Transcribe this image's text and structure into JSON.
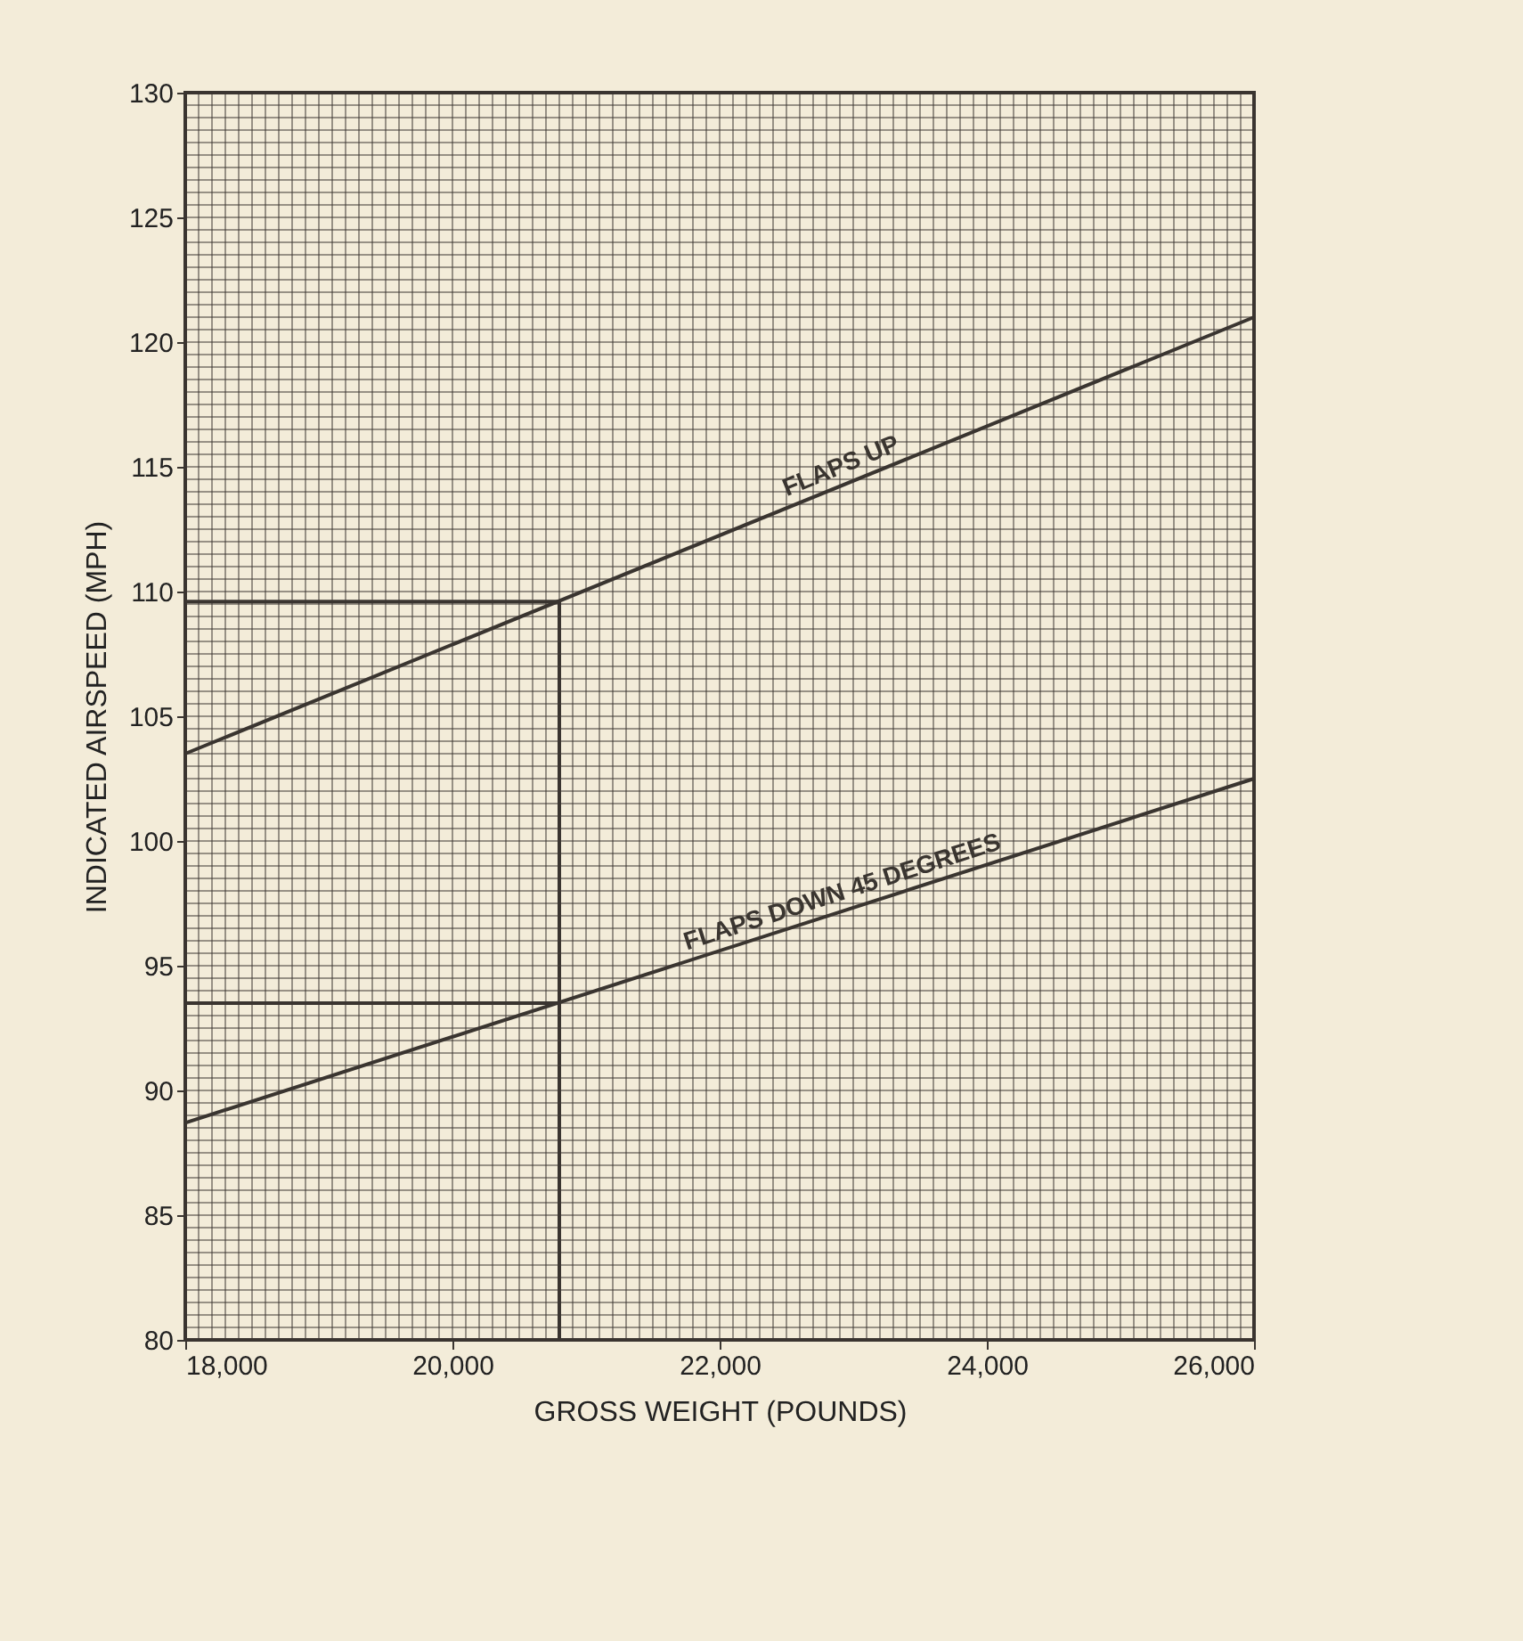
{
  "chart_data": {
    "type": "line",
    "xlabel": "GROSS WEIGHT (POUNDS)",
    "ylabel": "INDICATED AIRSPEED (MPH)",
    "xlim": [
      18000,
      26000
    ],
    "xticks": [
      {
        "value": 18000,
        "label": "18,000"
      },
      {
        "value": 20000,
        "label": "20,000"
      },
      {
        "value": 22000,
        "label": "22,000"
      },
      {
        "value": 24000,
        "label": "24,000"
      },
      {
        "value": 26000,
        "label": "26,000"
      }
    ],
    "ylim": [
      80,
      130
    ],
    "yticks": [
      80,
      85,
      90,
      95,
      100,
      105,
      110,
      115,
      120,
      125,
      130
    ],
    "grid": true,
    "legend": false,
    "series": [
      {
        "name": "FLAPS UP",
        "color": "#3a3530",
        "x": [
          18000,
          26000
        ],
        "values": [
          103.5,
          121
        ]
      },
      {
        "name": "FLAPS DOWN 45 DEGREES",
        "color": "#3a3530",
        "x": [
          18000,
          26000
        ],
        "values": [
          88.7,
          102.5
        ]
      },
      {
        "color": "#3a3530",
        "x": [
          18000,
          20800
        ],
        "values": [
          109.6,
          109.6
        ]
      },
      {
        "color": "#3a3530",
        "x": [
          20800,
          20800
        ],
        "values": [
          80,
          109.6
        ]
      },
      {
        "color": "#3a3530",
        "x": [
          18000,
          20800
        ],
        "values": [
          93.5,
          93.5
        ]
      }
    ]
  }
}
